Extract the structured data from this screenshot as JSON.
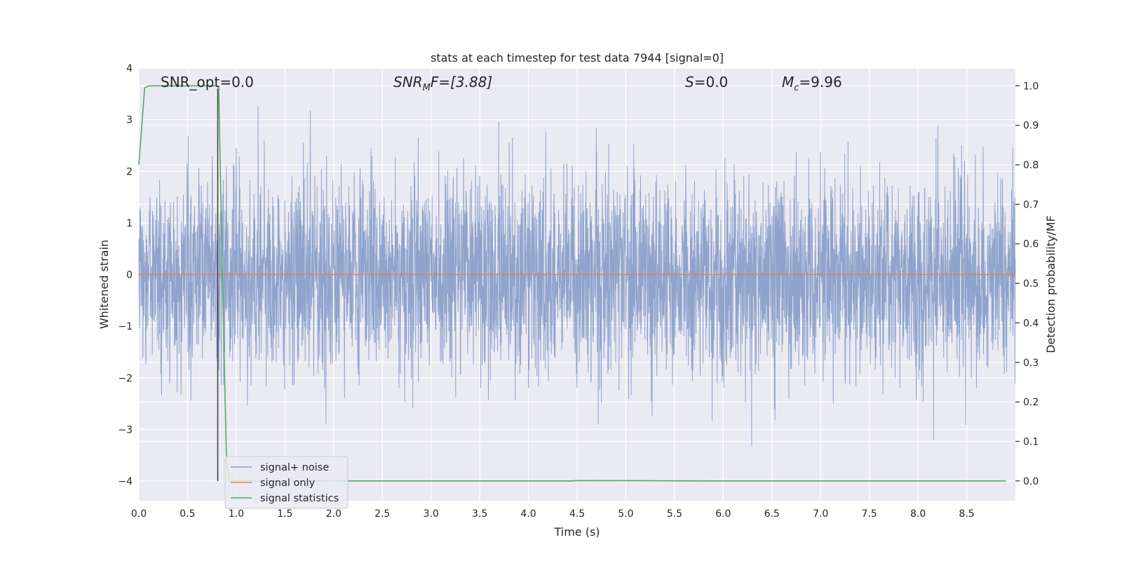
{
  "chart_data": {
    "type": "line",
    "title": "stats at each timestep for test data 7944 [signal=0]",
    "xlabel": "Time (s)",
    "ylabel": "Whitened strain",
    "ylabel_right": "Detection probability/MF",
    "xlim": [
      0.0,
      9.0
    ],
    "ylim": [
      -4.38,
      4.0
    ],
    "ylim_right": [
      -0.05,
      1.045
    ],
    "x_ticks": [
      "0.0",
      "0.5",
      "1.0",
      "1.5",
      "2.0",
      "2.5",
      "3.0",
      "3.5",
      "4.0",
      "4.5",
      "5.0",
      "5.5",
      "6.0",
      "6.5",
      "7.0",
      "7.5",
      "8.0",
      "8.5"
    ],
    "y_ticks": [
      "4",
      "3",
      "2",
      "1",
      "0",
      "−1",
      "−2",
      "−3",
      "−4"
    ],
    "y_ticks_right": [
      "1.0",
      "0.9",
      "0.8",
      "0.7",
      "0.6",
      "0.5",
      "0.4",
      "0.3",
      "0.2",
      "0.1",
      "0.0"
    ],
    "grid": true,
    "legend_placement": "lower-left",
    "annotations": {
      "snr_opt": "SNR_opt=0.0",
      "snr_mf_main": "SNR",
      "snr_mf_sub": "M",
      "snr_mf_rest": "F=[3.88]",
      "s_main": "S",
      "s_rest": "=0.0",
      "mc_main": "M",
      "mc_sub": "c",
      "mc_rest": "=9.96"
    },
    "marker_line_x": 0.81,
    "series": [
      {
        "name": "signal+ noise",
        "color": "#8fa3cc",
        "description_values": "whitened noise, roughly within ±2 with peaks near ±3.6",
        "noise_std": 0.95,
        "sample_count": 4096
      },
      {
        "name": "signal only",
        "color": "#dd8452",
        "values_constant": 0.0
      },
      {
        "name": "signal statistics",
        "color": "#55a868",
        "axis": "right",
        "x": [
          0.0,
          0.06,
          0.1,
          0.3,
          0.5,
          0.7,
          0.8,
          0.82,
          0.86,
          0.9,
          0.93,
          1.5,
          3.0,
          4.45,
          4.5,
          6.0,
          8.9
        ],
        "values": [
          0.8,
          0.995,
          1.0,
          1.0,
          1.0,
          1.0,
          1.0,
          0.995,
          0.5,
          0.05,
          0.0,
          0.0,
          0.0,
          0.0,
          0.001,
          0.0,
          0.0
        ]
      }
    ]
  }
}
